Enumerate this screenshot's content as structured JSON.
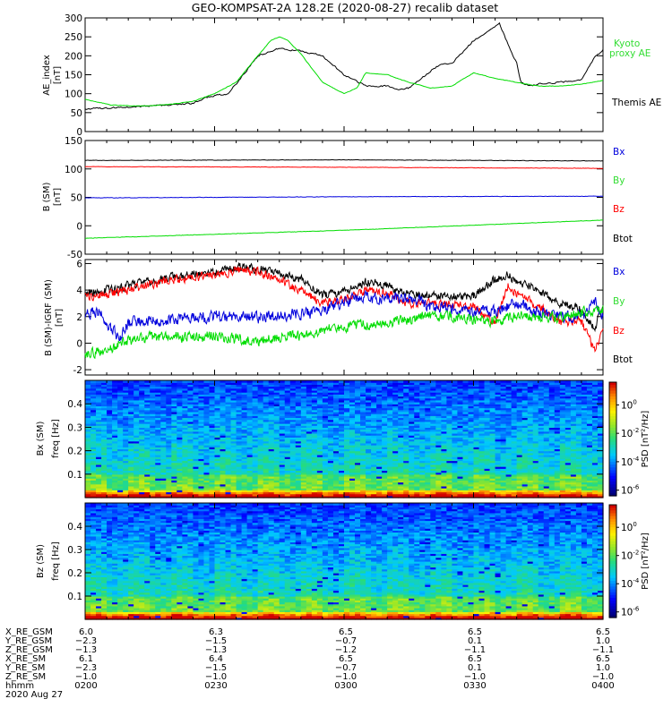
{
  "figure_title": "GEO-KOMPSAT-2A 128.2E (2020-08-27) recalib dataset",
  "colors": {
    "black": "#000000",
    "red": "#ff0000",
    "green": "#00dd00",
    "blue": "#0000dd",
    "legend_green": "#33dd33"
  },
  "chart_data": [
    {
      "type": "line",
      "panel": "ae",
      "ylabel_lines": [
        "AE_index",
        "[nT]"
      ],
      "ylim": [
        0,
        300
      ],
      "yticks": [
        0,
        50,
        100,
        150,
        200,
        250,
        300
      ],
      "xlim_minutes": [
        0,
        120
      ],
      "legend": [
        {
          "text": "Kyoto",
          "color": "green"
        },
        {
          "text": "proxy AE",
          "color": "green"
        },
        {
          "text": "Themis AE",
          "color": "black"
        }
      ],
      "series": [
        {
          "name": "Themis AE",
          "color": "black",
          "noise": 3,
          "x": [
            0,
            5,
            10,
            15,
            20,
            25,
            28,
            30,
            33,
            35,
            40,
            45,
            48,
            50,
            52,
            55,
            60,
            65,
            70,
            73,
            75,
            78,
            80,
            82,
            85,
            90,
            95,
            96,
            98,
            100,
            101,
            103,
            105,
            110,
            115,
            118,
            120
          ],
          "y": [
            60,
            62,
            65,
            68,
            70,
            75,
            90,
            95,
            100,
            125,
            200,
            220,
            215,
            212,
            208,
            200,
            150,
            120,
            120,
            110,
            115,
            140,
            160,
            175,
            180,
            240,
            275,
            285,
            230,
            180,
            130,
            120,
            125,
            130,
            135,
            195,
            215
          ]
        },
        {
          "name": "Kyoto proxy AE",
          "color": "green",
          "noise": 1,
          "x": [
            0,
            3,
            6,
            10,
            15,
            20,
            25,
            30,
            35,
            40,
            43,
            45,
            47,
            50,
            55,
            60,
            63,
            65,
            70,
            75,
            80,
            85,
            90,
            95,
            100,
            105,
            110,
            115,
            120
          ],
          "y": [
            85,
            78,
            70,
            68,
            68,
            72,
            80,
            100,
            130,
            200,
            240,
            250,
            240,
            205,
            130,
            100,
            115,
            155,
            150,
            130,
            115,
            120,
            155,
            140,
            130,
            120,
            120,
            125,
            135
          ]
        }
      ]
    },
    {
      "type": "line",
      "panel": "b_sm",
      "ylabel_lines": [
        "B (SM)",
        "[nT]"
      ],
      "ylim": [
        -50,
        150
      ],
      "yticks": [
        -50,
        0,
        50,
        100,
        150
      ],
      "legend": [
        {
          "text": "Bx",
          "color": "blue"
        },
        {
          "text": "By",
          "color": "green"
        },
        {
          "text": "Bz",
          "color": "red"
        },
        {
          "text": "Btot",
          "color": "black"
        }
      ],
      "series": [
        {
          "name": "Btot",
          "color": "black",
          "noise": 0.5,
          "x": [
            0,
            60,
            120
          ],
          "y": [
            115,
            116,
            114
          ]
        },
        {
          "name": "Bz",
          "color": "red",
          "noise": 0.5,
          "x": [
            0,
            60,
            120
          ],
          "y": [
            104,
            103,
            101
          ]
        },
        {
          "name": "Bx",
          "color": "blue",
          "noise": 0.5,
          "x": [
            0,
            60,
            120
          ],
          "y": [
            49,
            51,
            52
          ]
        },
        {
          "name": "By",
          "color": "green",
          "noise": 0.5,
          "x": [
            0,
            60,
            120
          ],
          "y": [
            -22,
            -8,
            10
          ]
        }
      ]
    },
    {
      "type": "line",
      "panel": "b_minus_igrf",
      "ylabel_lines": [
        "B (SM)-IGRF (SM)",
        "[nT]"
      ],
      "ylim": [
        -2.4,
        6.3
      ],
      "yticks": [
        -2,
        0,
        2,
        4,
        6
      ],
      "legend": [
        {
          "text": "Bx",
          "color": "blue"
        },
        {
          "text": "By",
          "color": "green"
        },
        {
          "text": "Bz",
          "color": "red"
        },
        {
          "text": "Btot",
          "color": "black"
        }
      ],
      "series": [
        {
          "name": "Btot",
          "color": "black",
          "noise": 0.45,
          "x": [
            0,
            5,
            10,
            20,
            30,
            35,
            40,
            45,
            50,
            55,
            60,
            65,
            70,
            75,
            80,
            85,
            90,
            95,
            98,
            100,
            103,
            105,
            110,
            115,
            118,
            120
          ],
          "y": [
            3.8,
            4.0,
            4.3,
            5.0,
            5.3,
            5.7,
            5.6,
            5.2,
            4.8,
            3.6,
            3.8,
            4.6,
            4.4,
            3.6,
            3.6,
            3.5,
            3.6,
            4.8,
            5.2,
            4.5,
            4.3,
            3.9,
            3.0,
            2.6,
            1.0,
            2.8
          ]
        },
        {
          "name": "Bz",
          "color": "red",
          "noise": 0.45,
          "x": [
            0,
            5,
            10,
            20,
            30,
            35,
            40,
            45,
            50,
            55,
            60,
            65,
            70,
            75,
            80,
            85,
            90,
            95,
            98,
            100,
            103,
            105,
            110,
            115,
            118,
            120
          ],
          "y": [
            3.5,
            3.7,
            4.0,
            4.8,
            5.1,
            5.5,
            5.4,
            4.8,
            4.0,
            3.0,
            3.3,
            4.0,
            3.8,
            3.0,
            3.0,
            2.9,
            2.8,
            1.5,
            4.3,
            3.8,
            3.2,
            2.8,
            1.6,
            1.6,
            -0.5,
            0.8
          ]
        },
        {
          "name": "Bx",
          "color": "blue",
          "noise": 0.6,
          "x": [
            0,
            3,
            6,
            8,
            10,
            15,
            20,
            25,
            30,
            35,
            40,
            45,
            50,
            55,
            60,
            65,
            70,
            75,
            80,
            85,
            90,
            95,
            100,
            105,
            110,
            115,
            118,
            120
          ],
          "y": [
            2.2,
            2.4,
            1.2,
            0.3,
            1.5,
            1.7,
            1.8,
            1.9,
            2.0,
            2.0,
            1.9,
            2.1,
            2.2,
            2.4,
            3.2,
            3.4,
            3.4,
            3.5,
            2.8,
            2.6,
            2.4,
            2.4,
            3.0,
            2.3,
            2.0,
            2.0,
            3.2,
            2.0
          ]
        },
        {
          "name": "By",
          "color": "green",
          "noise": 0.55,
          "x": [
            0,
            5,
            10,
            15,
            20,
            25,
            30,
            35,
            40,
            45,
            50,
            55,
            60,
            65,
            70,
            75,
            80,
            85,
            90,
            95,
            100,
            105,
            110,
            115,
            120
          ],
          "y": [
            -0.8,
            -0.5,
            0.2,
            0.4,
            0.5,
            0.4,
            0.6,
            0.3,
            0.2,
            0.4,
            0.6,
            1.0,
            1.2,
            1.4,
            1.6,
            1.8,
            2.0,
            2.0,
            1.8,
            1.7,
            2.0,
            1.9,
            2.0,
            2.3,
            2.6
          ]
        }
      ]
    },
    {
      "type": "heatmap",
      "panel": "bx_psd",
      "ylabel_lines": [
        "Bx (SM)",
        "freq [Hz]"
      ],
      "ylim": [
        0,
        0.5
      ],
      "yticks": [
        0.1,
        0.2,
        0.3,
        0.4
      ],
      "colorbar": {
        "label": "PSD [nT²/Hz]",
        "ticks": [
          {
            "mantissa": "10",
            "exp": "0"
          },
          {
            "mantissa": "10",
            "exp": "-2"
          },
          {
            "mantissa": "10",
            "exp": "-4"
          },
          {
            "mantissa": "10",
            "exp": "-6"
          }
        ]
      }
    },
    {
      "type": "heatmap",
      "panel": "bz_psd",
      "ylabel_lines": [
        "Bz (SM)",
        "freq [Hz]"
      ],
      "ylim": [
        0,
        0.5
      ],
      "yticks": [
        0.1,
        0.2,
        0.3,
        0.4
      ],
      "colorbar": {
        "label": "PSD [nT²/Hz]",
        "ticks": [
          {
            "mantissa": "10",
            "exp": "0"
          },
          {
            "mantissa": "10",
            "exp": "-2"
          },
          {
            "mantissa": "10",
            "exp": "-4"
          },
          {
            "mantissa": "10",
            "exp": "-6"
          }
        ]
      }
    }
  ],
  "ephemeris": {
    "labels": [
      "X_RE_GSM",
      "Y_RE_GSM",
      "Z_RE_GSM",
      "X_RE_SM",
      "Y_RE_SM",
      "Z_RE_SM",
      "hhmm",
      "2020 Aug 27"
    ],
    "columns": [
      [
        "6.0",
        "-2.3",
        "-1.3",
        "6.1",
        "-2.3",
        "-1.0",
        "0200"
      ],
      [
        "6.3",
        "-1.5",
        "-1.3",
        "6.4",
        "-1.5",
        "-1.0",
        "0230"
      ],
      [
        "6.5",
        "-0.7",
        "-1.2",
        "6.5",
        "-0.7",
        "-1.0",
        "0300"
      ],
      [
        "6.5",
        "0.1",
        "-1.1",
        "6.5",
        "0.1",
        "-1.0",
        "0330"
      ],
      [
        "6.5",
        "1.0",
        "-1.1",
        "6.5",
        "1.0",
        "-1.0",
        "0400"
      ]
    ]
  }
}
